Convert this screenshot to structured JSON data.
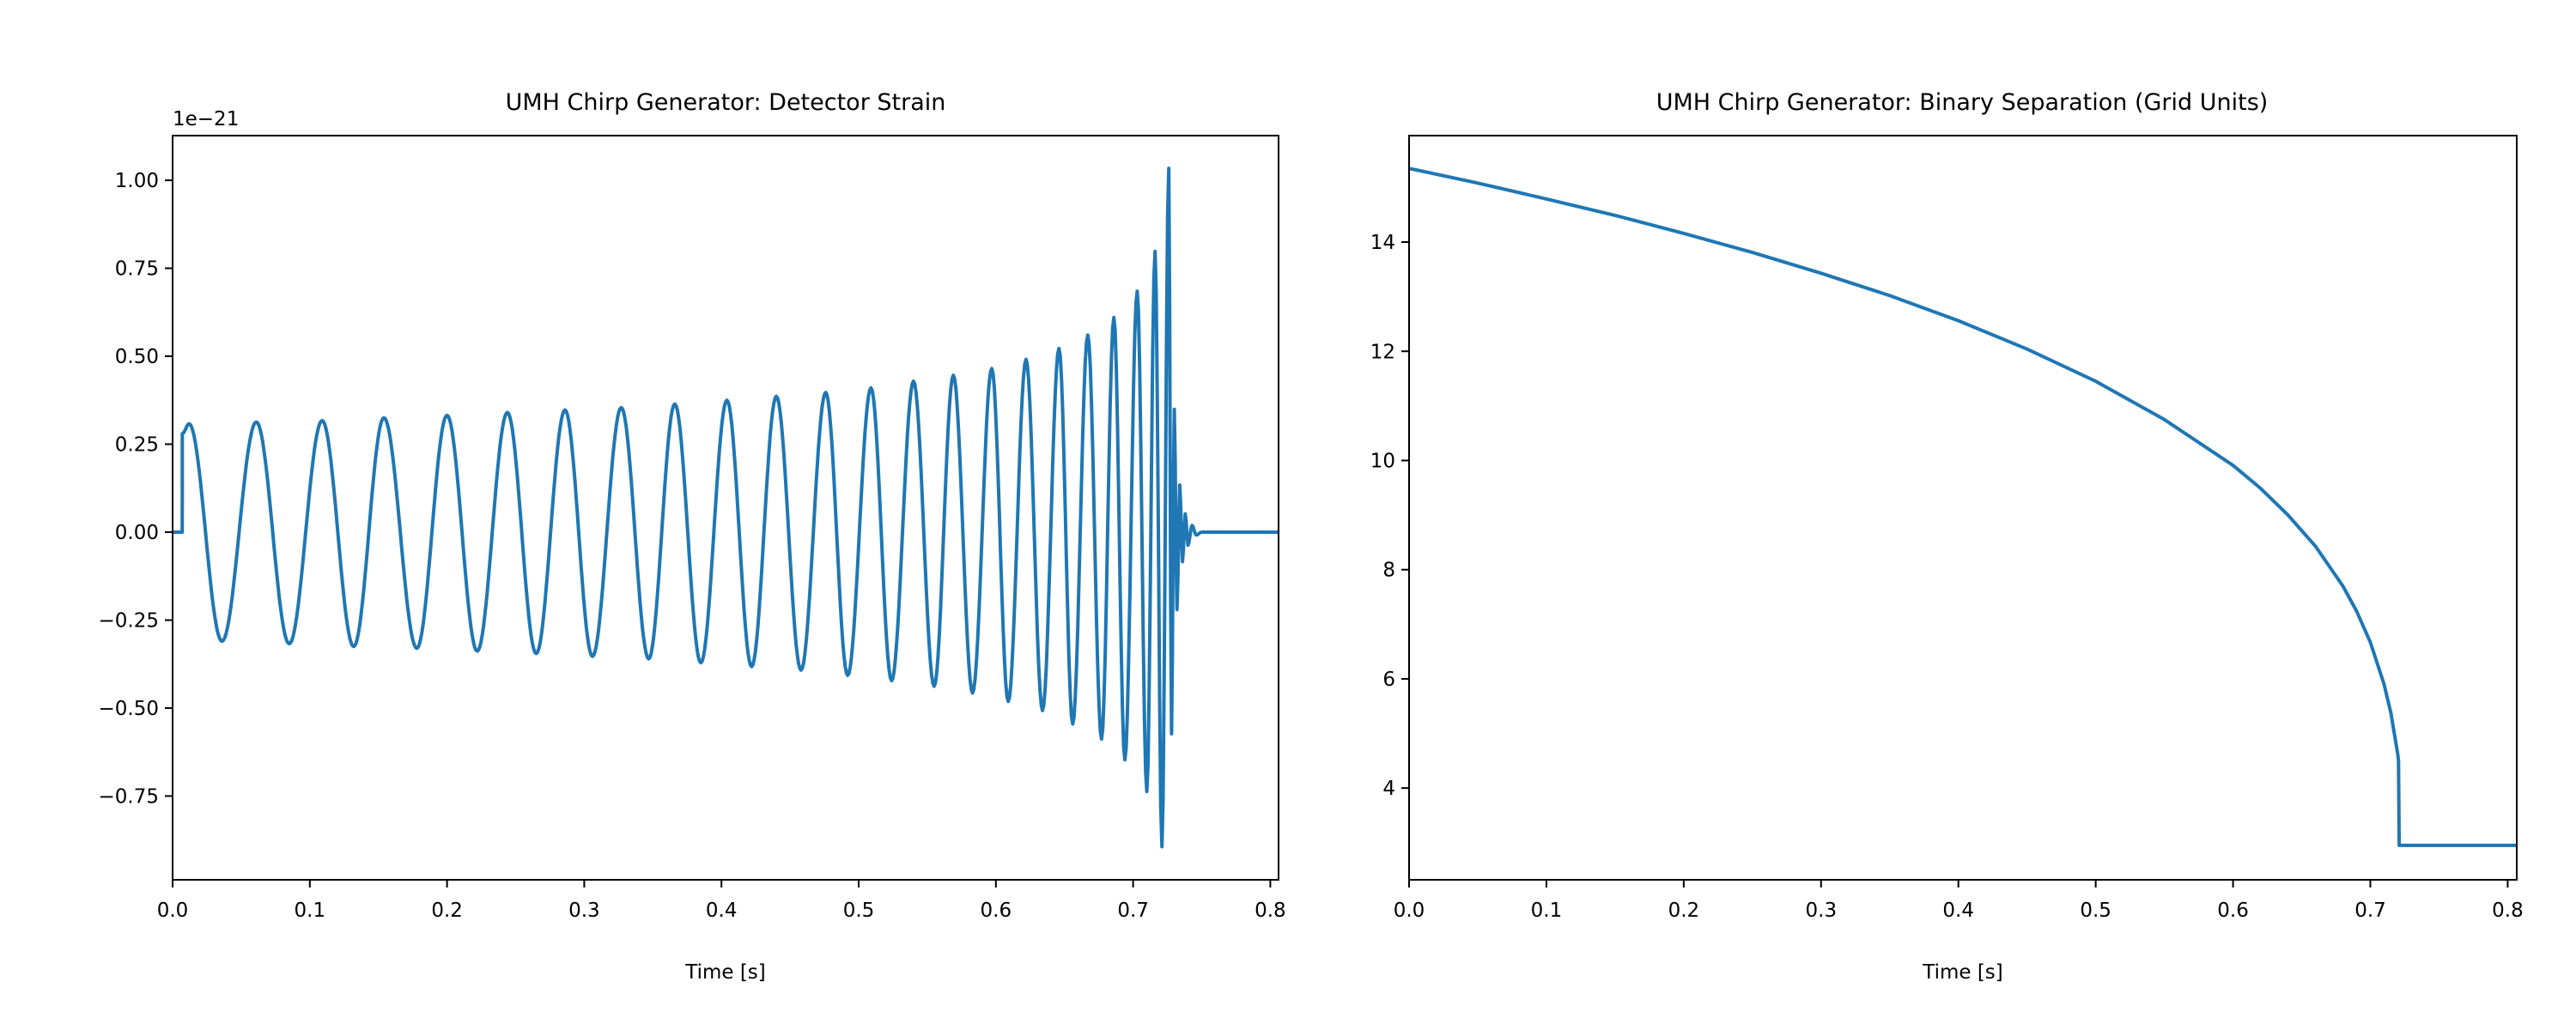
{
  "line_color": "#1f77b4",
  "chart_data": [
    {
      "type": "line",
      "title": "UMH Chirp Generator: Detector Strain",
      "xlabel": "Time [s]",
      "ylabel": "",
      "offset_text": "1e−21",
      "xlim": [
        0,
        0.806
      ],
      "ylim": [
        -0.988,
        1.127
      ],
      "y_scale_factor": 1e-21,
      "grid": false,
      "xticks": [
        0,
        0.1,
        0.2,
        0.3,
        0.4,
        0.5,
        0.6,
        0.7,
        0.8
      ],
      "xtick_labels": [
        "0.0",
        "0.1",
        "0.2",
        "0.3",
        "0.4",
        "0.5",
        "0.6",
        "0.7",
        "0.8"
      ],
      "yticks": [
        -0.75,
        -0.5,
        -0.25,
        0,
        0.25,
        0.5,
        0.75,
        1.0
      ],
      "ytick_labels": [
        "−0.75",
        "−0.50",
        "−0.25",
        "0.00",
        "0.25",
        "0.50",
        "0.75",
        "1.00"
      ],
      "x": [
        0,
        0.007,
        0.0071,
        0.012,
        0.036,
        0.061,
        0.085,
        0.109,
        0.132,
        0.154,
        0.178,
        0.2,
        0.222,
        0.244,
        0.265,
        0.286,
        0.306,
        0.327,
        0.347,
        0.366,
        0.385,
        0.404,
        0.422,
        0.44,
        0.458,
        0.476,
        0.492,
        0.509,
        0.524,
        0.54,
        0.555,
        0.569,
        0.583,
        0.597,
        0.609,
        0.622,
        0.634,
        0.646,
        0.656,
        0.667,
        0.677,
        0.686,
        0.694,
        0.703,
        0.71,
        0.716,
        0.721,
        0.726,
        0.728,
        0.73,
        0.732,
        0.734,
        0.736,
        0.738,
        0.74,
        0.743,
        0.746,
        0.75,
        0.806
      ],
      "y": [
        0,
        0,
        0.28,
        0.308,
        -0.31,
        0.313,
        -0.317,
        0.317,
        -0.325,
        0.325,
        -0.33,
        0.332,
        -0.338,
        0.34,
        -0.345,
        0.347,
        -0.353,
        0.354,
        -0.36,
        0.364,
        -0.371,
        0.375,
        -0.382,
        0.386,
        -0.392,
        0.397,
        -0.407,
        0.41,
        -0.422,
        0.429,
        -0.438,
        0.446,
        -0.457,
        0.465,
        -0.481,
        0.491,
        -0.507,
        0.522,
        -0.545,
        0.56,
        -0.588,
        0.61,
        -0.647,
        0.685,
        -0.737,
        0.798,
        -0.894,
        1.034,
        -0.573,
        0.349,
        -0.22,
        0.134,
        -0.084,
        0.052,
        -0.037,
        0.019,
        -0.008,
        0,
        0
      ]
    },
    {
      "type": "line",
      "title": "UMH Chirp Generator: Binary Separation (Grid Units)",
      "xlabel": "Time [s]",
      "ylabel": "",
      "xlim": [
        0,
        0.8066
      ],
      "ylim": [
        2.32,
        15.95
      ],
      "grid": false,
      "xticks": [
        0,
        0.1,
        0.2,
        0.3,
        0.4,
        0.5,
        0.6,
        0.7,
        0.8
      ],
      "xtick_labels": [
        "0.0",
        "0.1",
        "0.2",
        "0.3",
        "0.4",
        "0.5",
        "0.6",
        "0.7",
        "0.8"
      ],
      "yticks": [
        4,
        6,
        8,
        10,
        12,
        14
      ],
      "ytick_labels": [
        "4",
        "6",
        "8",
        "10",
        "12",
        "14"
      ],
      "x": [
        0,
        0.05,
        0.1,
        0.15,
        0.2,
        0.25,
        0.3,
        0.35,
        0.4,
        0.45,
        0.5,
        0.55,
        0.6,
        0.62,
        0.64,
        0.66,
        0.68,
        0.69,
        0.7,
        0.71,
        0.715,
        0.72,
        0.7205,
        0.721,
        0.806
      ],
      "y": [
        15.35,
        15.08,
        14.79,
        14.49,
        14.16,
        13.81,
        13.43,
        13.02,
        12.56,
        12.04,
        11.45,
        10.75,
        9.91,
        9.49,
        9.0,
        8.43,
        7.7,
        7.24,
        6.67,
        5.9,
        5.37,
        4.61,
        4.5,
        2.95,
        2.95
      ]
    }
  ]
}
